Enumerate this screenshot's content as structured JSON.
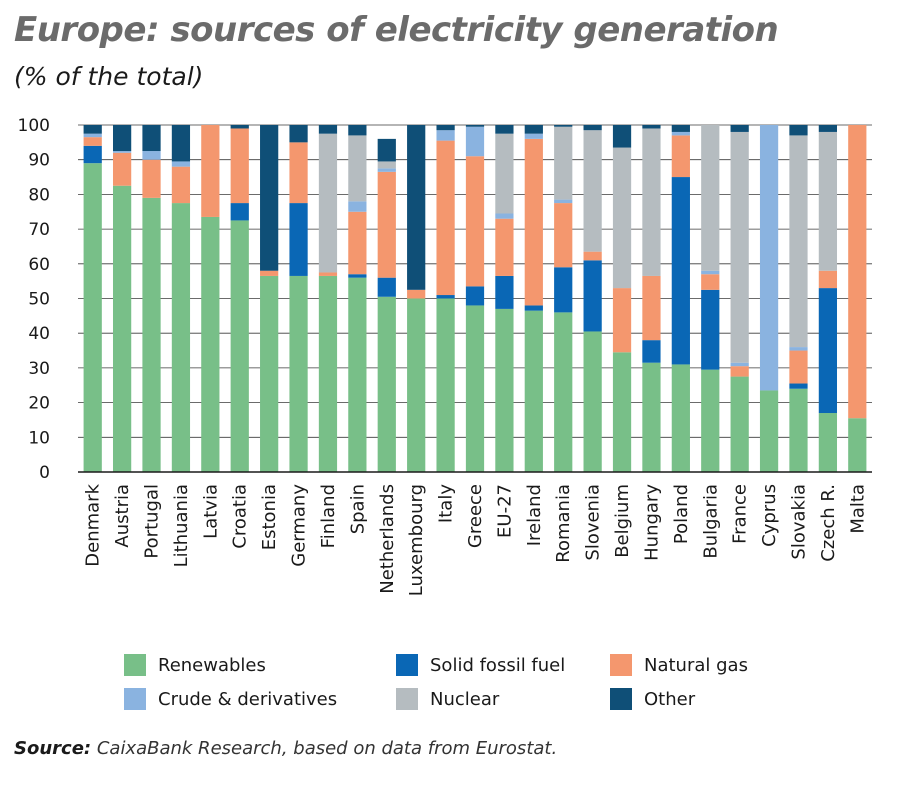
{
  "title": "Europe: sources of electricity generation",
  "subtitle": "(% of the total)",
  "source_label": "Source:",
  "source_text": "CaixaBank Research, based on data from Eurostat.",
  "colors": {
    "Renewables": "#78bf88",
    "Solid fossil fuel": "#0a67b5",
    "Natural gas": "#f4976e",
    "Crude & derivatives": "#8ab3e0",
    "Nuclear": "#b5bcc0",
    "Other": "#0f4f77"
  },
  "legend": [
    {
      "label": "Renewables"
    },
    {
      "label": "Solid fossil fuel"
    },
    {
      "label": "Natural gas"
    },
    {
      "label": "Crude & derivatives"
    },
    {
      "label": "Nuclear"
    },
    {
      "label": "Other"
    }
  ],
  "chart_data": {
    "type": "bar",
    "stacked": true,
    "ylim": [
      0,
      100
    ],
    "yticks": [
      0,
      10,
      20,
      30,
      40,
      50,
      60,
      70,
      80,
      90,
      100
    ],
    "categories": [
      "Denmark",
      "Austria",
      "Portugal",
      "Lithuania",
      "Latvia",
      "Croatia",
      "Estonia",
      "Germany",
      "Finland",
      "Spain",
      "Netherlands",
      "Luxembourg",
      "Italy",
      "Greece",
      "EU-27",
      "Ireland",
      "Romania",
      "Slovenia",
      "Belgium",
      "Hungary",
      "Poland",
      "Bulgaria",
      "France",
      "Cyprus",
      "Slovakia",
      "Czech R.",
      "Malta"
    ],
    "series": [
      {
        "name": "Renewables",
        "values": [
          89,
          82.5,
          79,
          77.5,
          73.5,
          72.5,
          56.5,
          56.5,
          56.5,
          56,
          50.5,
          50,
          50,
          48,
          47,
          46.5,
          46,
          40.5,
          34.5,
          31.5,
          31,
          29.5,
          27.5,
          23.5,
          24,
          17,
          15.5
        ]
      },
      {
        "name": "Solid fossil fuel",
        "values": [
          5,
          0,
          0,
          0,
          0,
          5,
          0,
          21,
          0,
          1,
          5.5,
          0,
          1,
          5.5,
          9.5,
          1.5,
          13,
          20.5,
          0,
          6.5,
          54,
          23,
          0,
          0,
          1.5,
          36,
          0
        ]
      },
      {
        "name": "Natural gas",
        "values": [
          2.5,
          9.5,
          11,
          10.5,
          26.5,
          21.5,
          1.5,
          17.5,
          1,
          18,
          30.5,
          2.5,
          44.5,
          37.5,
          16.5,
          48,
          18.5,
          2.5,
          18.5,
          18.5,
          12,
          4.5,
          3,
          0,
          9.5,
          5,
          84.5
        ]
      },
      {
        "name": "Crude & derivatives",
        "values": [
          1,
          0.5,
          2.5,
          1.5,
          0,
          0,
          0,
          0,
          0,
          3,
          1,
          0,
          3,
          8.5,
          1.5,
          1.5,
          1,
          0,
          0,
          0,
          1,
          1,
          1,
          76.5,
          1,
          0,
          0
        ]
      },
      {
        "name": "Nuclear",
        "values": [
          0,
          0,
          0,
          0,
          0,
          0,
          0,
          0,
          40,
          19,
          2,
          0,
          0,
          0,
          23,
          0,
          21,
          35,
          40.5,
          42.5,
          0,
          42,
          66.5,
          0,
          61,
          40,
          0
        ]
      },
      {
        "name": "Other",
        "values": [
          2.5,
          7.5,
          7.5,
          10.5,
          0,
          1,
          42,
          5,
          2.5,
          3,
          6.5,
          47.5,
          1.5,
          0.5,
          2.5,
          2.5,
          0.5,
          1.5,
          6.5,
          1,
          2,
          0,
          2,
          0,
          3,
          2,
          0
        ]
      }
    ]
  }
}
